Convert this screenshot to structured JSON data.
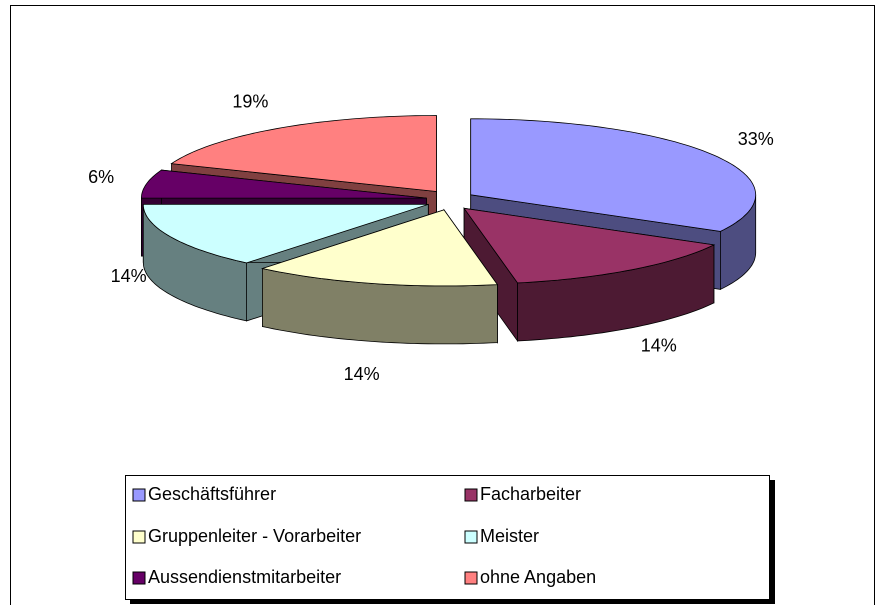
{
  "chart_data": {
    "type": "pie3d",
    "categories": [
      "Geschäftsführer",
      "Facharbeiter",
      "Gruppenleiter - Vorarbeiter",
      "Meister",
      "Aussendienstmitarbeiter",
      "ohne Angaben"
    ],
    "values": [
      33,
      14,
      14,
      14,
      6,
      19
    ],
    "value_labels": [
      "33%",
      "14%",
      "14%",
      "14%",
      "6%",
      "19%"
    ],
    "colors": [
      "#9999ff",
      "#993366",
      "#ffffcc",
      "#ccffff",
      "#660066",
      "#ff8080"
    ],
    "legend": "bottom"
  }
}
